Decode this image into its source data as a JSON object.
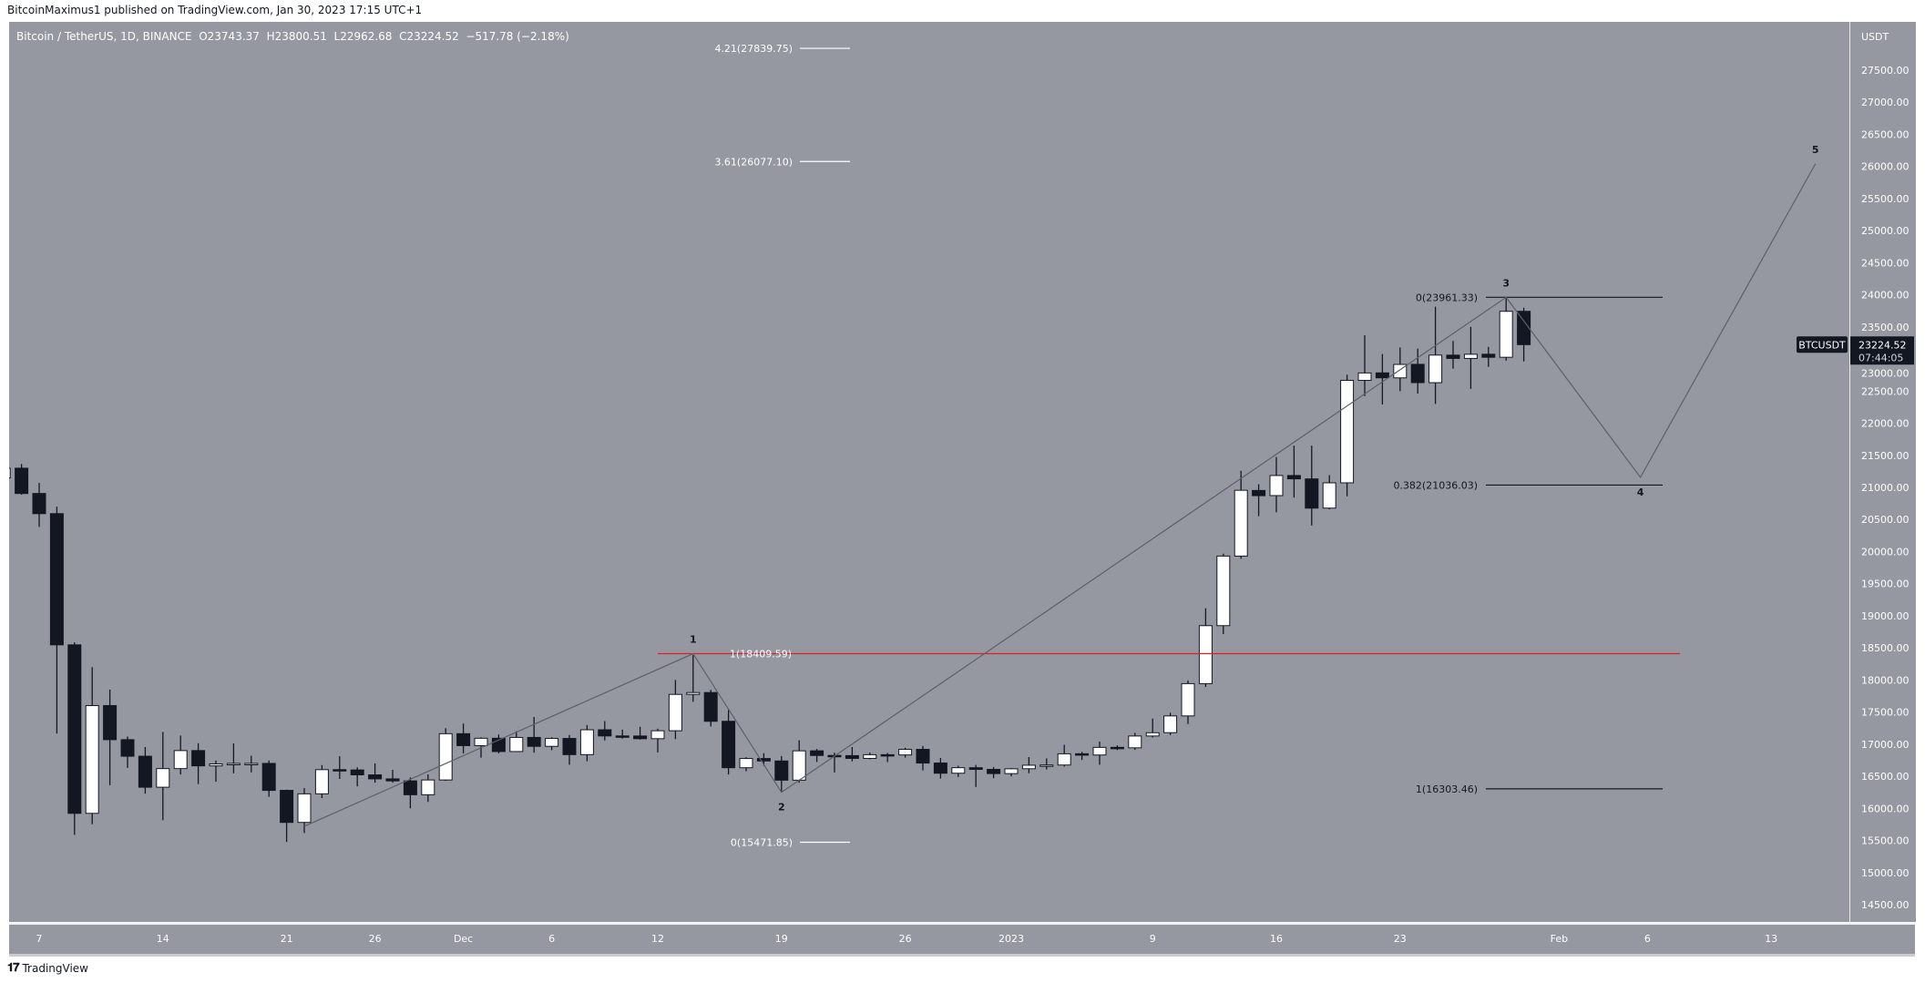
{
  "header": {
    "published": "BitcoinMaximus1 published on TradingView.com, Jan 30, 2023 17:15 UTC+1"
  },
  "legend": {
    "symbol": "Bitcoin / TetherUS, 1D, BINANCE",
    "o_label": "O",
    "o": "23743.37",
    "h_label": "H",
    "h": "23800.51",
    "l_label": "L",
    "l": "22962.68",
    "c_label": "C",
    "c": "23224.52",
    "change": "−517.78 (−2.18%)"
  },
  "price_axis": {
    "currency": "USDT",
    "labels": [
      "27500.00",
      "27000.00",
      "26500.00",
      "26000.00",
      "25500.00",
      "25000.00",
      "24500.00",
      "24000.00",
      "23500.00",
      "23000.00",
      "22500.00",
      "22000.00",
      "21500.00",
      "21000.00",
      "20500.00",
      "20000.00",
      "19500.00",
      "19000.00",
      "18500.00",
      "18000.00",
      "17500.00",
      "17000.00",
      "16500.00",
      "16000.00",
      "15500.00",
      "15000.00",
      "14500.00"
    ],
    "symbol_tag": "BTCUSDT",
    "last_price": "23224.52",
    "countdown": "07:44:05"
  },
  "time_axis": {
    "labels": [
      {
        "text": "7",
        "day": 0
      },
      {
        "text": "14",
        "day": 7
      },
      {
        "text": "21",
        "day": 14
      },
      {
        "text": "26",
        "day": 19
      },
      {
        "text": "Dec",
        "day": 24
      },
      {
        "text": "6",
        "day": 29
      },
      {
        "text": "12",
        "day": 35
      },
      {
        "text": "19",
        "day": 42
      },
      {
        "text": "26",
        "day": 49
      },
      {
        "text": "2023",
        "day": 55
      },
      {
        "text": "9",
        "day": 63
      },
      {
        "text": "16",
        "day": 70
      },
      {
        "text": "23",
        "day": 77
      },
      {
        "text": "Feb",
        "day": 86
      },
      {
        "text": "6",
        "day": 91
      },
      {
        "text": "13",
        "day": 98
      }
    ]
  },
  "colors": {
    "background": "#9598a1",
    "up": "#ffffff",
    "down": "#131722",
    "fib_left": "#ffffff",
    "fib_right": "#131722",
    "resistance": "#e02020",
    "wave": "#5d606b"
  },
  "chart_data": {
    "type": "candlestick",
    "symbol": "BTCUSDT",
    "interval": "1D",
    "day0": "2022-11-07",
    "ylim": [
      14200,
      28000
    ],
    "ohlc_fields": [
      "day",
      "open",
      "high",
      "low",
      "close"
    ],
    "candles": [
      [
        -2,
        21148,
        21480,
        21081,
        21299
      ],
      [
        -1,
        21299,
        21365,
        20886,
        20905
      ],
      [
        0,
        20905,
        21069,
        20384,
        20591
      ],
      [
        1,
        20591,
        20700,
        17166,
        18547
      ],
      [
        2,
        18547,
        18587,
        15588,
        15922
      ],
      [
        3,
        15922,
        18199,
        15754,
        17601
      ],
      [
        4,
        17601,
        17850,
        16361,
        17070
      ],
      [
        5,
        17070,
        17119,
        16631,
        16812
      ],
      [
        6,
        16812,
        16954,
        16229,
        16329
      ],
      [
        7,
        16329,
        17190,
        15815,
        16619
      ],
      [
        8,
        16619,
        17134,
        16527,
        16900
      ],
      [
        9,
        16900,
        17015,
        16378,
        16662
      ],
      [
        10,
        16662,
        16745,
        16415,
        16692
      ],
      [
        11,
        16692,
        17011,
        16546,
        16700
      ],
      [
        12,
        16700,
        16820,
        16561,
        16700
      ],
      [
        13,
        16700,
        16746,
        16180,
        16280
      ],
      [
        14,
        16280,
        16291,
        15476,
        15781
      ],
      [
        15,
        15781,
        16315,
        15616,
        16226
      ],
      [
        16,
        16226,
        16674,
        16160,
        16603
      ],
      [
        17,
        16603,
        16812,
        16458,
        16598
      ],
      [
        18,
        16598,
        16639,
        16342,
        16522
      ],
      [
        19,
        16522,
        16701,
        16400,
        16459
      ],
      [
        20,
        16459,
        16600,
        16400,
        16428
      ],
      [
        21,
        16428,
        16483,
        16000,
        16212
      ],
      [
        22,
        16212,
        16528,
        16100,
        16442
      ],
      [
        23,
        16442,
        17249,
        16428,
        17163
      ],
      [
        24,
        17163,
        17320,
        16855,
        16977
      ],
      [
        25,
        16977,
        17105,
        16790,
        17092
      ],
      [
        26,
        17092,
        17150,
        16858,
        16885
      ],
      [
        27,
        16885,
        17202,
        16878,
        17105
      ],
      [
        28,
        17105,
        17424,
        16867,
        16966
      ],
      [
        29,
        16966,
        17107,
        16906,
        17089
      ],
      [
        30,
        17089,
        17142,
        16679,
        16837
      ],
      [
        31,
        16837,
        17299,
        16733,
        17224
      ],
      [
        32,
        17224,
        17360,
        17058,
        17128
      ],
      [
        33,
        17128,
        17227,
        17086,
        17127
      ],
      [
        34,
        17127,
        17270,
        17071,
        17085
      ],
      [
        35,
        17085,
        17241,
        16871,
        17209
      ],
      [
        36,
        17209,
        18000,
        17080,
        17775
      ],
      [
        37,
        17775,
        18387,
        17660,
        17804
      ],
      [
        38,
        17804,
        17846,
        17275,
        17356
      ],
      [
        39,
        17356,
        17531,
        16527,
        16633
      ],
      [
        40,
        16633,
        16796,
        16579,
        16776
      ],
      [
        41,
        16776,
        16859,
        16663,
        16738
      ],
      [
        42,
        16738,
        16815,
        16256,
        16439
      ],
      [
        43,
        16439,
        17061,
        16398,
        16896
      ],
      [
        44,
        16896,
        16925,
        16723,
        16824
      ],
      [
        45,
        16824,
        16868,
        16559,
        16821
      ],
      [
        46,
        16821,
        16955,
        16731,
        16778
      ],
      [
        47,
        16778,
        16869,
        16765,
        16836
      ],
      [
        48,
        16836,
        16863,
        16721,
        16832
      ],
      [
        49,
        16832,
        16944,
        16791,
        16919
      ],
      [
        50,
        16919,
        16972,
        16592,
        16706
      ],
      [
        51,
        16706,
        16785,
        16465,
        16547
      ],
      [
        52,
        16547,
        16664,
        16488,
        16633
      ],
      [
        53,
        16633,
        16677,
        16333,
        16607
      ],
      [
        54,
        16607,
        16644,
        16470,
        16542
      ],
      [
        55,
        16541,
        16628,
        16499,
        16616
      ],
      [
        56,
        16617,
        16799,
        16548,
        16672
      ],
      [
        57,
        16672,
        16778,
        16605,
        16675
      ],
      [
        58,
        16675,
        16991,
        16652,
        16850
      ],
      [
        59,
        16850,
        16879,
        16753,
        16831
      ],
      [
        60,
        16831,
        17041,
        16679,
        16950
      ],
      [
        61,
        16950,
        16981,
        16908,
        16943
      ],
      [
        62,
        16943,
        17176,
        16911,
        17127
      ],
      [
        63,
        17127,
        17398,
        17104,
        17178
      ],
      [
        64,
        17179,
        17490,
        17142,
        17440
      ],
      [
        65,
        17440,
        17990,
        17315,
        17943
      ],
      [
        66,
        17943,
        19117,
        17892,
        18846
      ],
      [
        67,
        18846,
        19967,
        18714,
        19930
      ],
      [
        68,
        19930,
        21258,
        19888,
        20955
      ],
      [
        69,
        20952,
        21050,
        20551,
        20871
      ],
      [
        70,
        20872,
        21473,
        20611,
        21185
      ],
      [
        71,
        21185,
        21650,
        20841,
        21133
      ],
      [
        72,
        21132,
        21650,
        20407,
        20677
      ],
      [
        73,
        20677,
        21191,
        20659,
        21071
      ],
      [
        74,
        21071,
        22755,
        20861,
        22667
      ],
      [
        75,
        22667,
        23371,
        22422,
        22783
      ],
      [
        76,
        22784,
        23078,
        22293,
        22707
      ],
      [
        77,
        22706,
        23180,
        22500,
        22916
      ],
      [
        78,
        22917,
        23162,
        22462,
        22632
      ],
      [
        79,
        22631,
        23816,
        22300,
        23061
      ],
      [
        80,
        23060,
        23282,
        22850,
        23009
      ],
      [
        81,
        23009,
        23500,
        22534,
        23074
      ],
      [
        82,
        23074,
        23189,
        22878,
        23027
      ],
      [
        83,
        23027,
        23960,
        22976,
        23743
      ],
      [
        84,
        23743,
        23800,
        22962,
        23224
      ]
    ],
    "fib_left": [
      {
        "label": "4.21(27839.75)",
        "price": 27839.75
      },
      {
        "label": "3.61(26077.10)",
        "price": 26077.1
      },
      {
        "label": "1(18409.59)",
        "price": 18409.59
      },
      {
        "label": "0(15471.85)",
        "price": 15471.85
      }
    ],
    "fib_right": [
      {
        "label": "0(23961.33)",
        "price": 23961.33
      },
      {
        "label": "0.382(21036.03)",
        "price": 21036.03
      },
      {
        "label": "1(16303.46)",
        "price": 16303.46
      }
    ],
    "resistance": {
      "price": 18409.59
    },
    "wave_path": [
      {
        "label": "",
        "day": 15,
        "price": 15720
      },
      {
        "label": "1",
        "day": 37,
        "price": 18409,
        "pos": "above"
      },
      {
        "label": "2",
        "day": 42,
        "price": 16250,
        "pos": "below"
      },
      {
        "label": "3",
        "day": 83,
        "price": 23961,
        "pos": "above"
      },
      {
        "label": "4",
        "day": 90.6,
        "price": 21157,
        "pos": "below"
      },
      {
        "label": "5",
        "day": 100.5,
        "price": 26040,
        "pos": "above"
      }
    ]
  },
  "footer": {
    "brand": "TradingView",
    "logo": "TV"
  }
}
